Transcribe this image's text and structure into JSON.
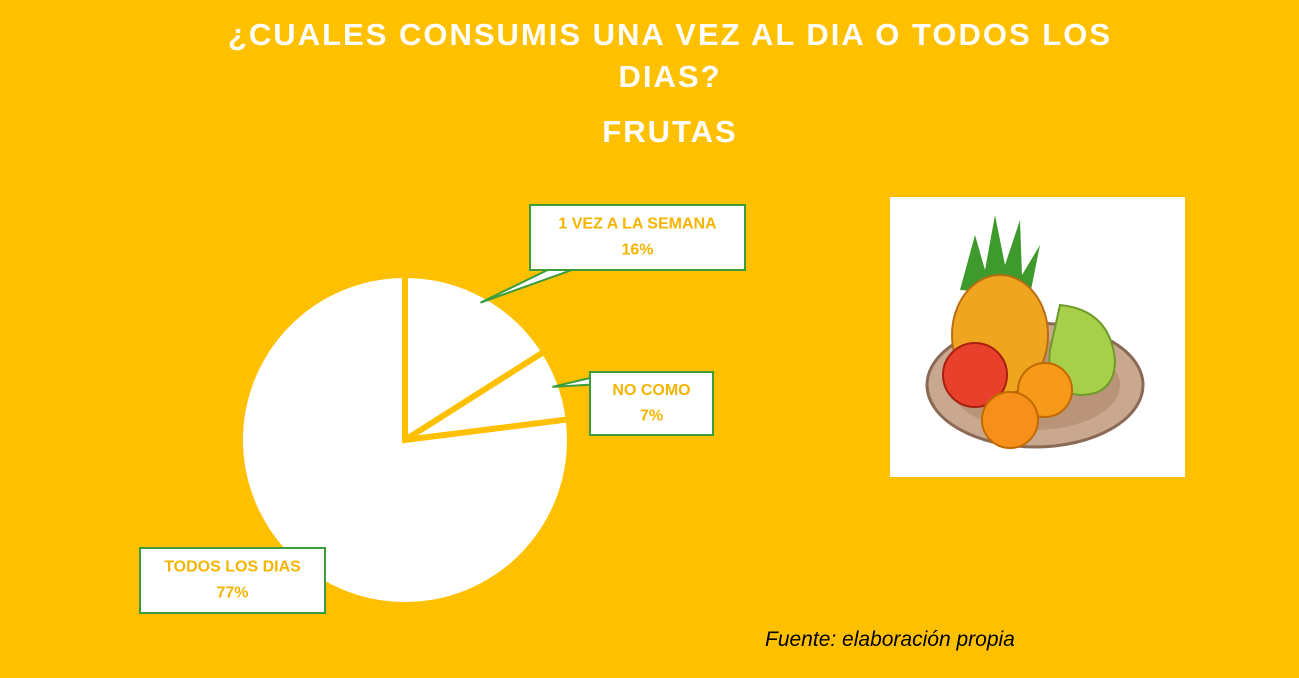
{
  "chart_data": {
    "type": "pie",
    "title": "¿CUALES CONSUMIS UNA VEZ AL DIA O TODOS LOS DIAS?",
    "subtitle": "FRUTAS",
    "categories": [
      "1 VEZ A LA SEMANA",
      "NO COMO",
      "TODOS LOS DIAS"
    ],
    "values": [
      16,
      7,
      77
    ],
    "value_labels": [
      "16%",
      "7%",
      "77%"
    ],
    "colors": [
      "#ffffff",
      "#ffffff",
      "#ffffff"
    ],
    "source": "Fuente: elaboración propia"
  }
}
